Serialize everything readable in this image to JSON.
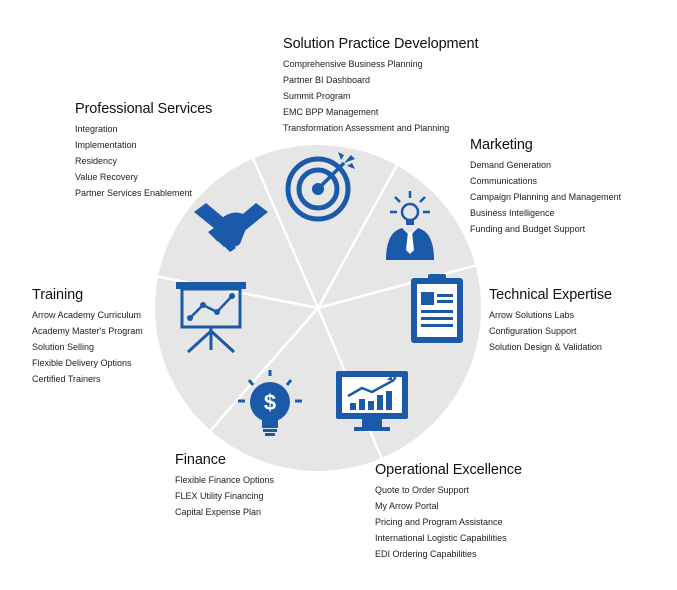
{
  "colors": {
    "wheel_fill": "#e6e6e6",
    "divider": "#ffffff",
    "icon_blue": "#1a5aa8"
  },
  "sections": {
    "solution_practice": {
      "title": "Solution Practice Development",
      "icon": "target-dart-icon",
      "items": [
        "Comprehensive Business Planning",
        "Partner BI Dashboard",
        "Summit Program",
        "EMC BPP Management",
        "Transformation Assessment and Planning"
      ]
    },
    "professional_services": {
      "title": "Professional Services",
      "icon": "handshake-icon",
      "items": [
        "Integration",
        "Implementation",
        "Residency",
        "Value Recovery",
        "Partner Services Enablement"
      ]
    },
    "marketing": {
      "title": "Marketing",
      "icon": "lightbulb-person-icon",
      "items": [
        "Demand Generation",
        "Communications",
        "Campaign Planning and Management",
        "Business Intelligence",
        "Funding and Budget Support"
      ]
    },
    "training": {
      "title": "Training",
      "icon": "presentation-board-icon",
      "items": [
        "Arrow Academy Curriculum",
        "Academy Master's Program",
        "Solution Selling",
        "Flexible Delivery Options",
        "Certified Trainers"
      ]
    },
    "technical_expertise": {
      "title": "Technical Expertise",
      "icon": "clipboard-icon",
      "items": [
        "Arrow Solutions Labs",
        "Configuration Support",
        "Solution Design & Validation"
      ]
    },
    "finance": {
      "title": "Finance",
      "icon": "dollar-bulb-icon",
      "items": [
        "Flexible Finance Options",
        "FLEX Utility Financing",
        "Capital Expense Plan"
      ]
    },
    "operational_excellence": {
      "title": "Operational Excellence",
      "icon": "monitor-chart-icon",
      "items": [
        "Quote to Order Support",
        "My Arrow Portal",
        "Pricing and Program Assistance",
        "International Logistic Capabilities",
        "EDI Ordering Capabilities"
      ]
    }
  }
}
